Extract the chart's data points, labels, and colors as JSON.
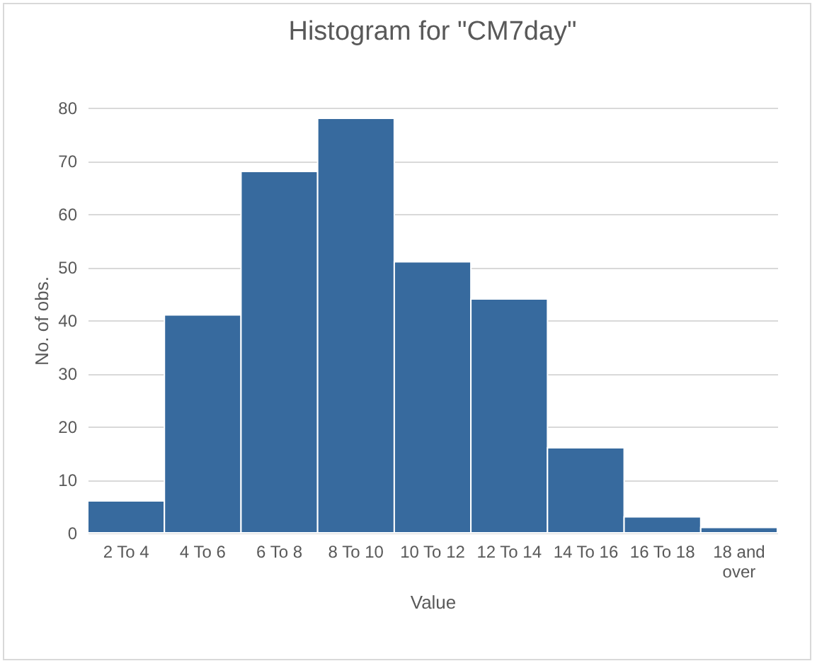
{
  "chart_data": {
    "type": "bar",
    "title": "Histogram for \"CM7day\"",
    "xlabel": "Value",
    "ylabel": "No. of obs.",
    "categories": [
      "2 To 4",
      "4 To 6",
      "6 To 8",
      "8 To 10",
      "10 To 12",
      "12 To 14",
      "14 To 16",
      "16 To 18",
      "18 and over"
    ],
    "values": [
      6,
      41,
      68,
      78,
      51,
      44,
      16,
      3,
      1
    ],
    "color": "#376a9e",
    "ylim": [
      0,
      80
    ],
    "yticks": [
      0,
      10,
      20,
      30,
      40,
      50,
      60,
      70,
      80
    ],
    "grid": "y"
  }
}
